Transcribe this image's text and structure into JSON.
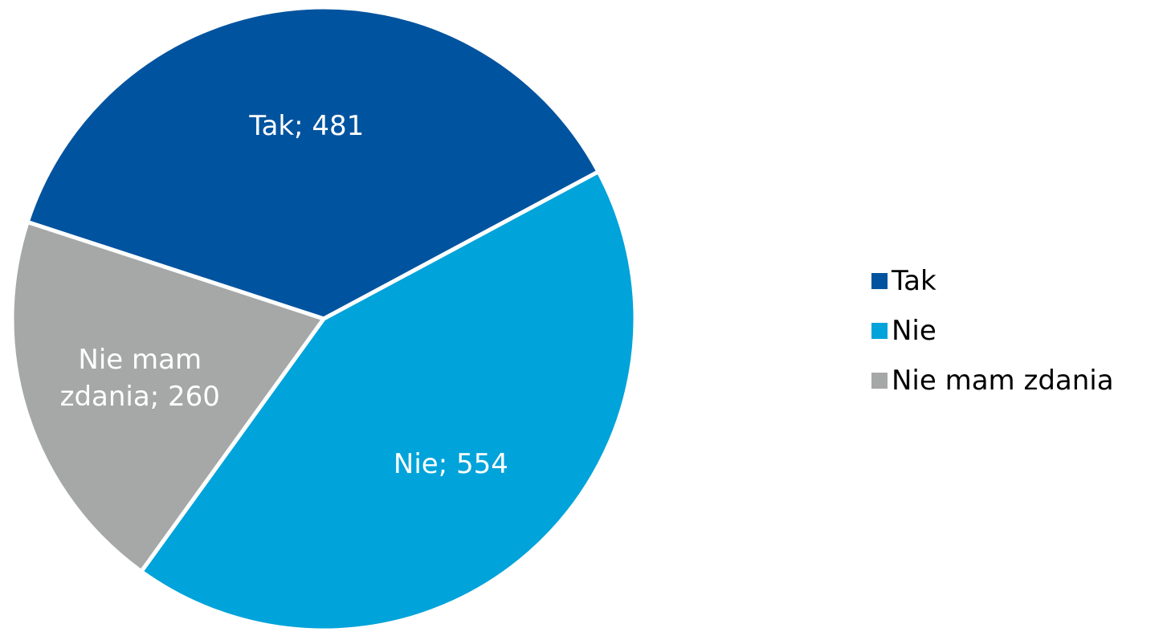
{
  "chart_data": {
    "type": "pie",
    "categories": [
      "Tak",
      "Nie",
      "Nie mam zdania"
    ],
    "values": [
      481,
      554,
      260
    ],
    "value_labels": [
      "Tak; 481",
      "Nie; 554",
      "Nie mam zdania; 260"
    ],
    "colors": [
      "#00539f",
      "#00a3da",
      "#a5a8a7"
    ],
    "legend": "right"
  }
}
